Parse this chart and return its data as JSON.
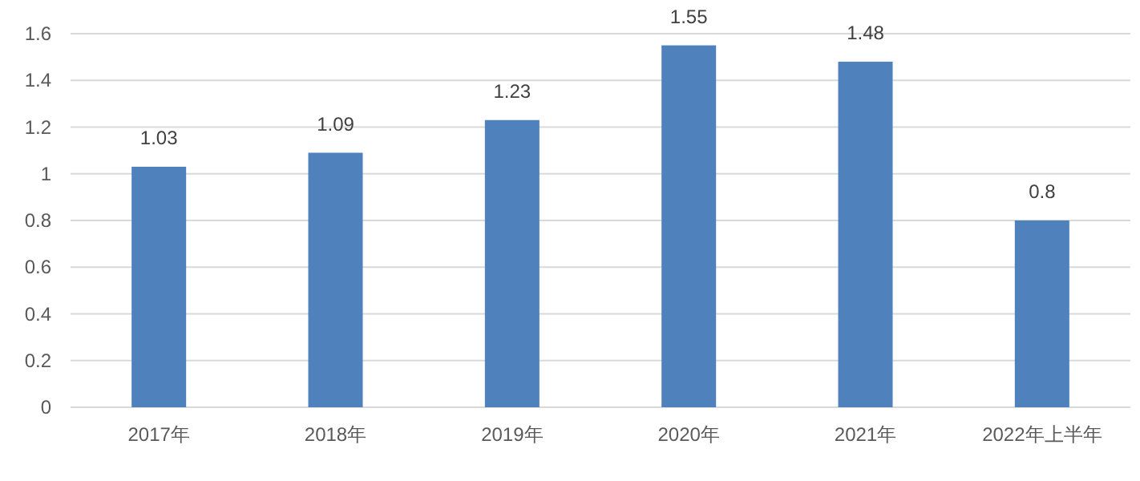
{
  "chart_data": {
    "type": "bar",
    "categories": [
      "2017年",
      "2018年",
      "2019年",
      "2020年",
      "2021年",
      "2022年上半年"
    ],
    "values": [
      1.03,
      1.09,
      1.23,
      1.55,
      1.48,
      0.8
    ],
    "color": "#4f81bd",
    "ylim": [
      0,
      1.6
    ],
    "yticks": [
      0,
      0.2,
      0.4,
      0.6,
      0.8,
      1,
      1.2,
      1.4,
      1.6
    ],
    "grid": "y",
    "data_labels": true
  }
}
